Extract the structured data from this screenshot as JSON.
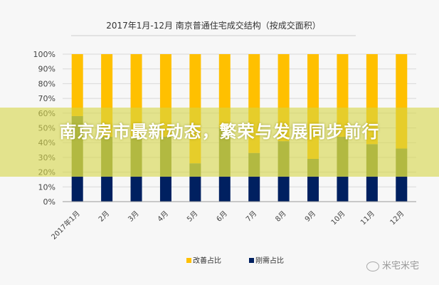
{
  "chart_data": {
    "type": "bar",
    "stacked": true,
    "title": "2017年1月-12月 南京普通住宅成交结构（按成交面积）",
    "categories": [
      "2017年1月",
      "2月",
      "3月",
      "4月",
      "5月",
      "6月",
      "7月",
      "8月",
      "9月",
      "10月",
      "11月",
      "12月"
    ],
    "series": [
      {
        "name": "刚需占比",
        "color": "#002060",
        "values": [
          17,
          17,
          17,
          17,
          17,
          17,
          17,
          17,
          17,
          17,
          17,
          17
        ]
      },
      {
        "color": "#7d8f3a",
        "values": [
          41,
          27,
          27,
          27,
          9,
          33,
          16,
          24,
          12,
          27,
          22,
          19
        ]
      },
      {
        "name": "改善占比",
        "color": "#FFC000",
        "values": [
          42,
          56,
          56,
          56,
          74,
          50,
          67,
          59,
          71,
          56,
          61,
          64
        ]
      }
    ],
    "yticks": [
      "0%",
      "10%",
      "20%",
      "30%",
      "40%",
      "50%",
      "60%",
      "70%",
      "80%",
      "90%",
      "100%"
    ],
    "ylim": [
      0,
      100
    ],
    "grid": true,
    "legend": "bottom",
    "legend_order": [
      "改善占比",
      "刚需占比"
    ]
  },
  "overlay": {
    "headline": "南京房市最新动态，繁荣与发展同步前行"
  },
  "watermark": {
    "text": "米宅米宅",
    "icon": "wechat-icon"
  }
}
